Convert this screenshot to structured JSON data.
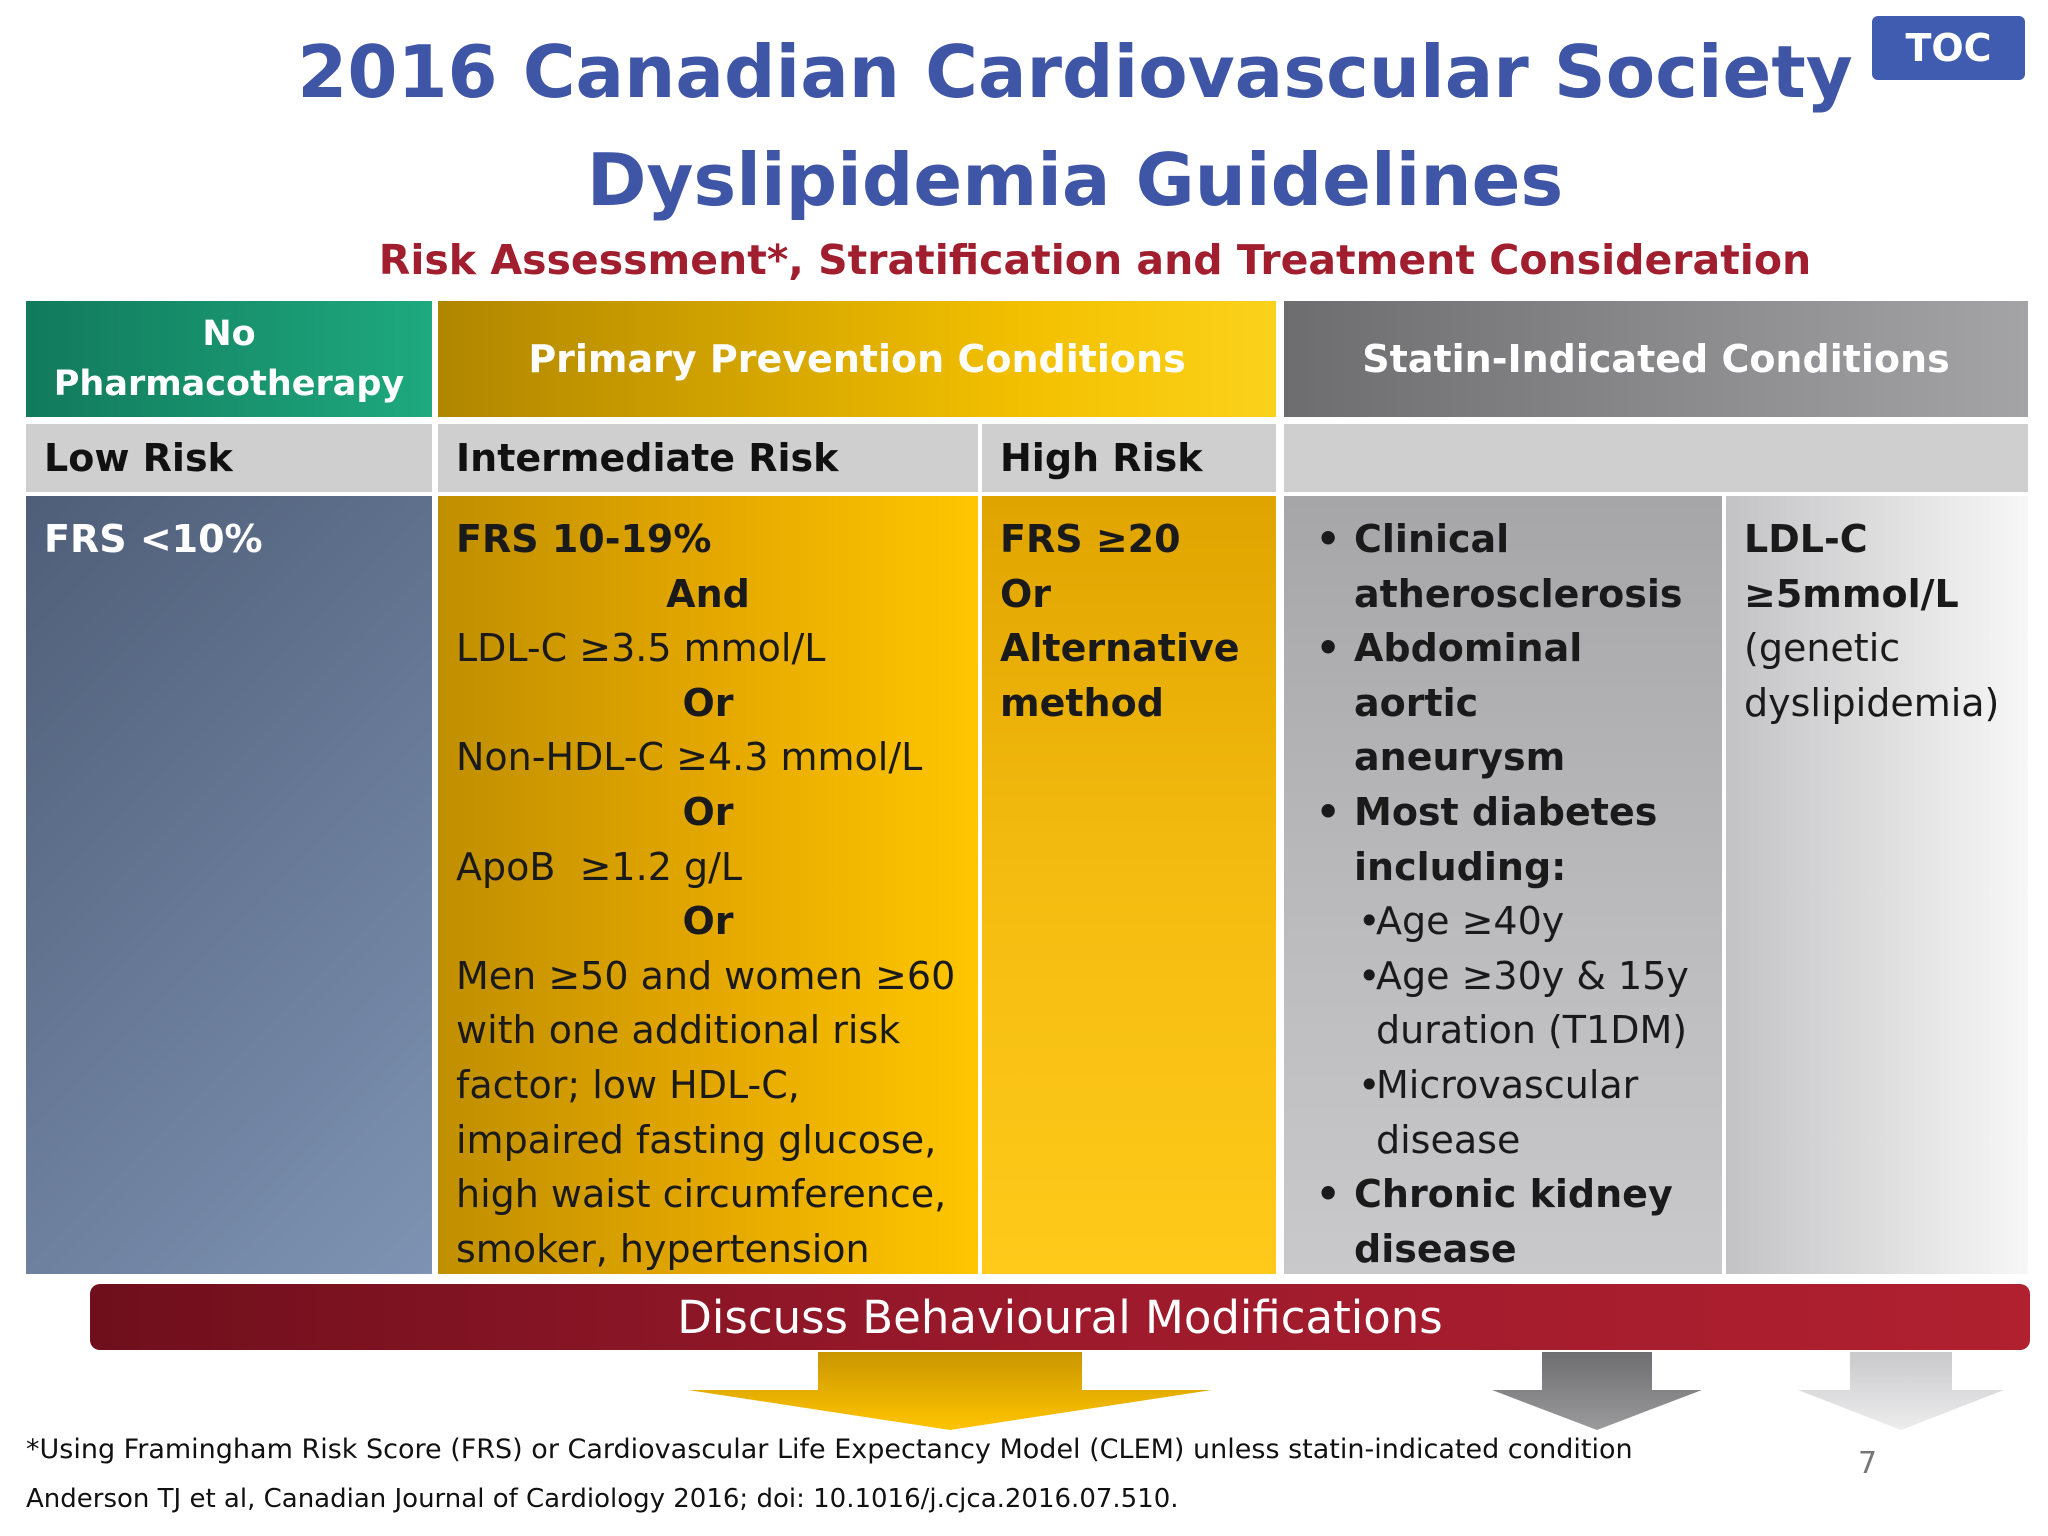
{
  "title": {
    "line1": "2016 Canadian Cardiovascular Society",
    "line2": "Dyslipidemia Guidelines"
  },
  "subtitle": "Risk Assessment*, Stratification and Treatment Consideration",
  "toc_label": "TOC",
  "headers": {
    "no_pharma": [
      "No",
      "Pharmacotherapy"
    ],
    "primary": "Primary Prevention Conditions",
    "statin": "Statin-Indicated Conditions"
  },
  "subheaders": {
    "low": "Low Risk",
    "intermediate": "Intermediate Risk",
    "high": "High Risk"
  },
  "low_risk": {
    "criteria": "FRS <10%"
  },
  "intermediate_risk": {
    "frs": "FRS 10-19%",
    "and": "And",
    "ldl": "LDL-C ≥3.5 mmol/L",
    "or1": "Or",
    "nonhdl": "Non-HDL-C ≥4.3 mmol/L",
    "or2": "Or",
    "apob": "ApoB  ≥1.2 g/L",
    "or3": "Or",
    "men_women": [
      "Men ≥50 and women ≥60",
      "with one additional risk",
      "factor; low HDL-C,",
      "impaired fasting glucose,",
      "high waist circumference,",
      "smoker, hypertension"
    ]
  },
  "high_risk": {
    "lines": [
      "FRS ≥20",
      "Or",
      "Alternative",
      "method"
    ]
  },
  "statin_clinical": {
    "item1": [
      "Clinical",
      "atherosclerosis"
    ],
    "item2": [
      "Abdominal aortic",
      "aneurysm"
    ],
    "item3": [
      "Most diabetes",
      "including:"
    ],
    "sub1": "Age ≥40y",
    "sub2": [
      "Age ≥30y & 15y",
      "duration (T1DM)"
    ],
    "sub3": [
      "Microvascular",
      "disease"
    ],
    "item4": [
      "Chronic kidney",
      "disease"
    ]
  },
  "statin_ldl": {
    "bold": [
      "LDL-C",
      "≥5mmol/L"
    ],
    "normal": [
      "(genetic",
      "dyslipidemia)"
    ]
  },
  "behaviour_bar": "Discuss Behavioural Modifications",
  "footnote": "*Using Framingham Risk Score (FRS) or Cardiovascular Life Expectancy Model (CLEM) unless statin-indicated condition",
  "citation": "Anderson TJ et al, Canadian Journal of Cardiology 2016; doi: 10.1016/j.cjca.2016.07.510.",
  "page_number": "7",
  "colors": {
    "title_blue": "#3f55a6",
    "subtitle_red": "#a01e2e",
    "green": "#1a9270",
    "gold": "#f3c000",
    "gray": "#8e8e90",
    "dark_red": "#9c1a2c"
  }
}
